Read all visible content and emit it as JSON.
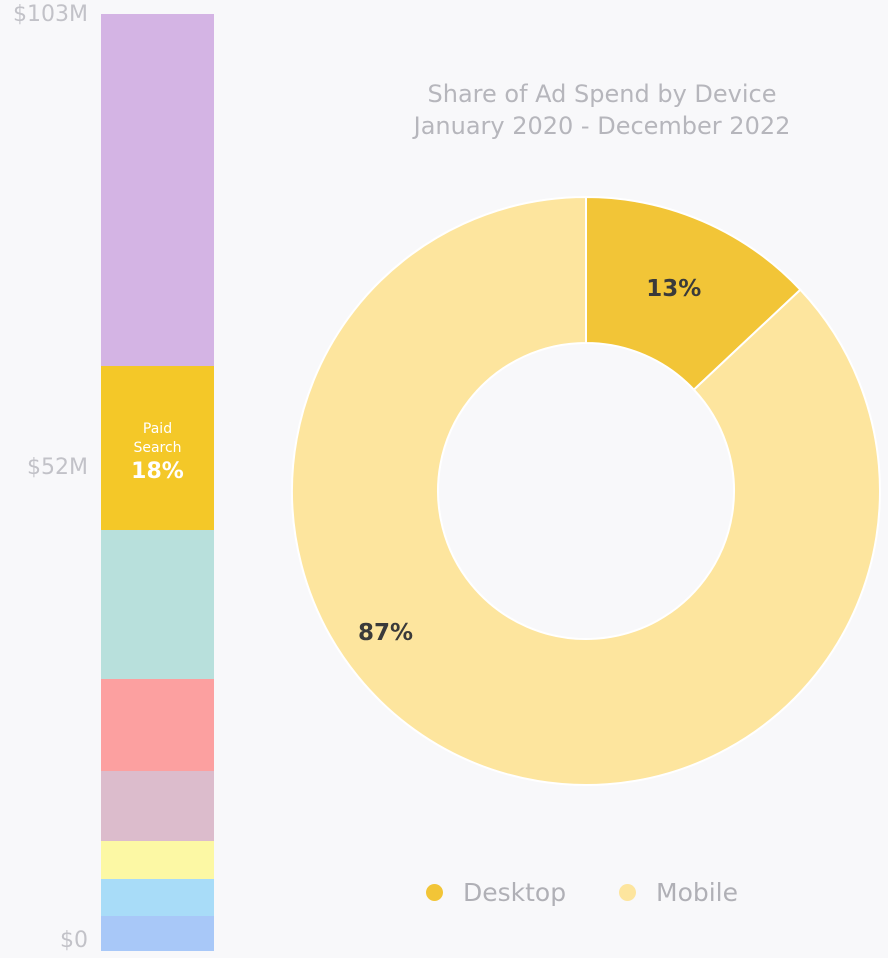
{
  "chart_data": [
    {
      "type": "bar",
      "stacked": true,
      "yticks": [
        "$103M",
        "$52M",
        "$0"
      ],
      "ylim": [
        0,
        103
      ],
      "unit": "$M",
      "segments": [
        {
          "name": "",
          "value": 4.0,
          "color": "#a8c8f8"
        },
        {
          "name": "",
          "value": 4.2,
          "color": "#a8dcf8"
        },
        {
          "name": "",
          "value": 4.2,
          "color": "#fcf8a4"
        },
        {
          "name": "",
          "value": 8.0,
          "color": "#dcbccc"
        },
        {
          "name": "",
          "value": 10.4,
          "color": "#fca0a0"
        },
        {
          "name": "",
          "value": 16.8,
          "color": "#b8e0dc"
        },
        {
          "name": "Paid Search",
          "value": 18.6,
          "color": "#f4c828",
          "label_name": "Paid Search",
          "label_pct": "18%"
        },
        {
          "name": "",
          "value": 39.8,
          "color": "#d4b4e4"
        }
      ]
    },
    {
      "type": "pie",
      "donut": true,
      "title_line1": "Share of Ad Spend by Device",
      "title_line2": "January 2020 - December 2022",
      "slices": [
        {
          "name": "Desktop",
          "value": 13,
          "label": "13%",
          "color": "#f2c537"
        },
        {
          "name": "Mobile",
          "value": 87,
          "label": "87%",
          "color": "#fde59e"
        }
      ],
      "legend_position": "bottom"
    }
  ]
}
